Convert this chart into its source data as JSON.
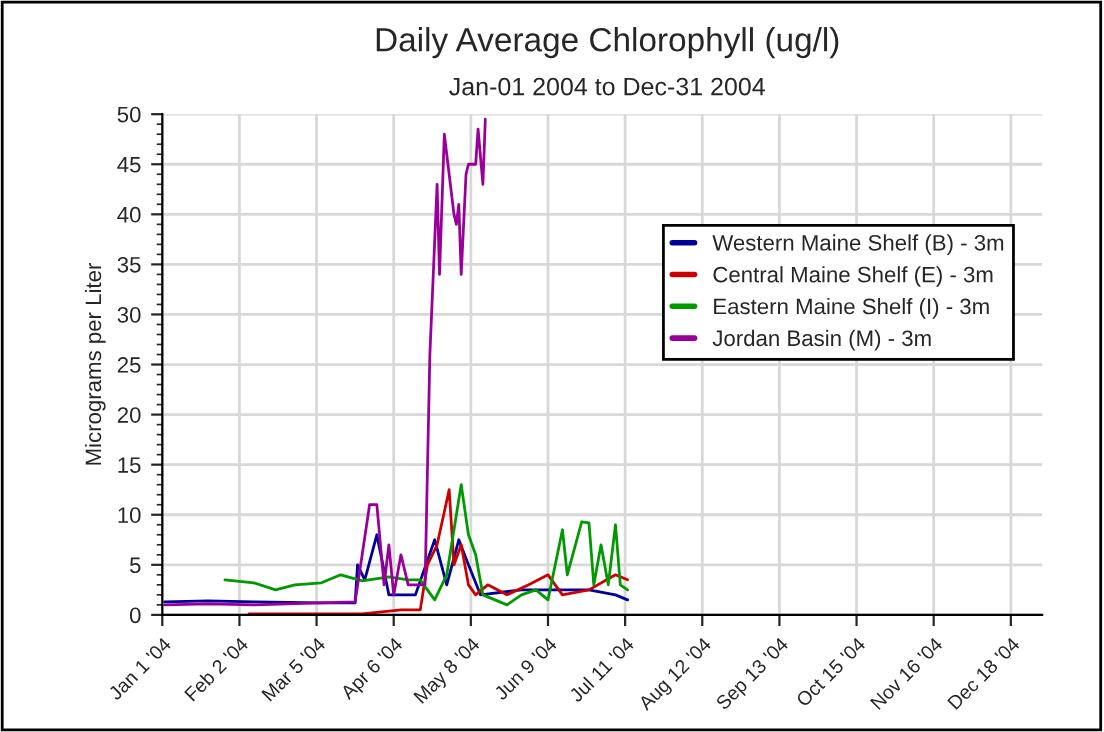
{
  "chart_data": {
    "type": "line",
    "title": "Daily Average Chlorophyll (ug/l)",
    "subtitle": "Jan-01 2004 to Dec-31 2004",
    "ylabel": "Micrograms per Liter",
    "xlim": [
      "2004-01-01",
      "2004-12-31"
    ],
    "xticks": [
      {
        "value": "2004-01-01",
        "label": "Jan 1 '04"
      },
      {
        "value": "2004-02-02",
        "label": "Feb 2 '04"
      },
      {
        "value": "2004-03-05",
        "label": "Mar 5 '04"
      },
      {
        "value": "2004-04-06",
        "label": "Apr 6 '04"
      },
      {
        "value": "2004-05-08",
        "label": "May 8 '04"
      },
      {
        "value": "2004-06-09",
        "label": "Jun 9 '04"
      },
      {
        "value": "2004-07-11",
        "label": "Jul 11 '04"
      },
      {
        "value": "2004-08-12",
        "label": "Aug 12 '04"
      },
      {
        "value": "2004-09-13",
        "label": "Sep 13 '04"
      },
      {
        "value": "2004-10-15",
        "label": "Oct 15 '04"
      },
      {
        "value": "2004-11-16",
        "label": "Nov 16 '04"
      },
      {
        "value": "2004-12-18",
        "label": "Dec 18 '04"
      }
    ],
    "ylim": [
      0,
      50
    ],
    "yticks": [
      0,
      5,
      10,
      15,
      20,
      25,
      30,
      35,
      40,
      45,
      50
    ],
    "grid": true,
    "legend": "top right",
    "series": [
      {
        "name": "Western Maine Shelf (B) - 3m",
        "color": "#000099",
        "x": [
          "2004-01-02",
          "2004-01-20",
          "2004-02-08",
          "2004-03-07",
          "2004-03-21",
          "2004-03-22",
          "2004-03-25",
          "2004-03-30",
          "2004-04-04",
          "2004-04-15",
          "2004-04-23",
          "2004-04-28",
          "2004-05-03",
          "2004-05-07",
          "2004-05-12",
          "2004-05-29",
          "2004-06-12",
          "2004-06-26",
          "2004-07-07",
          "2004-07-12"
        ],
        "values": [
          1.3,
          1.4,
          1.3,
          1.2,
          1.2,
          5,
          3.5,
          8,
          2,
          2,
          7.5,
          3,
          7.5,
          5,
          2,
          2.5,
          2.5,
          2.5,
          2,
          1.5
        ]
      },
      {
        "name": "Central Maine Shelf (E) - 3m",
        "color": "#cc0000",
        "x": [
          "2004-02-06",
          "2004-03-24",
          "2004-04-09",
          "2004-04-17",
          "2004-04-20",
          "2004-04-24",
          "2004-04-29",
          "2004-05-01",
          "2004-05-04",
          "2004-05-07",
          "2004-05-10",
          "2004-05-15",
          "2004-05-23",
          "2004-06-01",
          "2004-06-09",
          "2004-06-15",
          "2004-06-26",
          "2004-07-07",
          "2004-07-12"
        ],
        "values": [
          0.1,
          0.1,
          0.5,
          0.5,
          5,
          7,
          12.5,
          5,
          7,
          3,
          2,
          3,
          2,
          3,
          4,
          2,
          2.5,
          4,
          3.5
        ]
      },
      {
        "name": "Eastern Maine Shelf (I) - 3m",
        "color": "#009900",
        "x": [
          "2004-01-27",
          "2004-02-08",
          "2004-02-17",
          "2004-02-25",
          "2004-03-07",
          "2004-03-15",
          "2004-03-24",
          "2004-04-04",
          "2004-04-12",
          "2004-04-17",
          "2004-04-23",
          "2004-04-28",
          "2004-05-04",
          "2004-05-07",
          "2004-05-10",
          "2004-05-13",
          "2004-05-18",
          "2004-05-23",
          "2004-05-29",
          "2004-06-04",
          "2004-06-09",
          "2004-06-15",
          "2004-06-17",
          "2004-06-23",
          "2004-06-26",
          "2004-06-28",
          "2004-07-01",
          "2004-07-04",
          "2004-07-07",
          "2004-07-09",
          "2004-07-12"
        ],
        "values": [
          3.5,
          3.2,
          2.5,
          3,
          3.2,
          4,
          3.4,
          3.8,
          3.5,
          3.5,
          1.5,
          4,
          13,
          8,
          6,
          2,
          1.5,
          1,
          2,
          2.5,
          1.5,
          8.5,
          4,
          9.3,
          9.2,
          3,
          7,
          3,
          9,
          3,
          2.5
        ]
      },
      {
        "name": "Jordan Basin (M) - 3m",
        "color": "#990099",
        "x": [
          "2004-01-02",
          "2004-01-20",
          "2004-02-08",
          "2004-03-07",
          "2004-03-21",
          "2004-03-27",
          "2004-03-30",
          "2004-04-02",
          "2004-04-04",
          "2004-04-06",
          "2004-04-09",
          "2004-04-12",
          "2004-04-17",
          "2004-04-19",
          "2004-04-21",
          "2004-04-24",
          "2004-04-25",
          "2004-04-27",
          "2004-05-01",
          "2004-05-02",
          "2004-05-03",
          "2004-05-04",
          "2004-05-06",
          "2004-05-07",
          "2004-05-10",
          "2004-05-11",
          "2004-05-13",
          "2004-05-14"
        ],
        "values": [
          1,
          1.1,
          1,
          1.2,
          1.3,
          11,
          11,
          3,
          7,
          2,
          6,
          3,
          3,
          3,
          26,
          43,
          34,
          48,
          40,
          39,
          41,
          34,
          44,
          45,
          45,
          48.5,
          43,
          49.5
        ]
      }
    ]
  }
}
